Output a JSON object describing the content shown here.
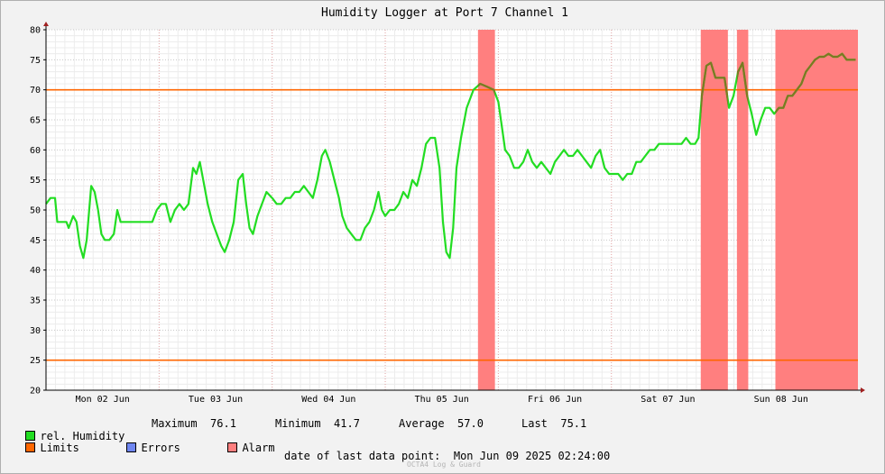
{
  "chart_data": {
    "type": "line",
    "title": "Humidity Logger at Port 7 Channel 1",
    "ylim": [
      20,
      80
    ],
    "yticks": [
      20,
      25,
      30,
      35,
      40,
      45,
      50,
      55,
      60,
      65,
      70,
      75,
      80
    ],
    "xlim": [
      0,
      7.18
    ],
    "xticks": [
      {
        "label": "Mon 02 Jun",
        "x": 0.5
      },
      {
        "label": "Tue 03 Jun",
        "x": 1.5
      },
      {
        "label": "Wed 04 Jun",
        "x": 2.5
      },
      {
        "label": "Thu 05 Jun",
        "x": 3.5
      },
      {
        "label": "Fri 06 Jun",
        "x": 4.5
      },
      {
        "label": "Sat 07 Jun",
        "x": 5.5
      },
      {
        "label": "Sun 08 Jun",
        "x": 6.5
      }
    ],
    "limits": [
      70,
      25
    ],
    "alarm_ranges": [
      [
        3.82,
        3.97
      ],
      [
        5.79,
        6.03
      ],
      [
        6.11,
        6.21
      ],
      [
        6.45,
        7.18
      ]
    ],
    "series": [
      {
        "name": "rel. Humidity",
        "color": "#22dd22",
        "alarm_color": "#7a7a22",
        "points": [
          [
            0.0,
            51
          ],
          [
            0.04,
            52
          ],
          [
            0.08,
            52
          ],
          [
            0.1,
            48
          ],
          [
            0.14,
            48
          ],
          [
            0.18,
            48
          ],
          [
            0.2,
            47
          ],
          [
            0.24,
            49
          ],
          [
            0.27,
            48
          ],
          [
            0.3,
            44
          ],
          [
            0.33,
            42
          ],
          [
            0.36,
            45
          ],
          [
            0.4,
            54
          ],
          [
            0.43,
            53
          ],
          [
            0.46,
            50
          ],
          [
            0.49,
            46
          ],
          [
            0.52,
            45
          ],
          [
            0.56,
            45
          ],
          [
            0.6,
            46
          ],
          [
            0.63,
            50
          ],
          [
            0.66,
            48
          ],
          [
            0.7,
            48
          ],
          [
            0.74,
            48
          ],
          [
            0.8,
            48
          ],
          [
            0.86,
            48
          ],
          [
            0.9,
            48
          ],
          [
            0.94,
            48
          ],
          [
            0.98,
            50
          ],
          [
            1.02,
            51
          ],
          [
            1.06,
            51
          ],
          [
            1.1,
            48
          ],
          [
            1.14,
            50
          ],
          [
            1.18,
            51
          ],
          [
            1.22,
            50
          ],
          [
            1.26,
            51
          ],
          [
            1.3,
            57
          ],
          [
            1.33,
            56
          ],
          [
            1.36,
            58
          ],
          [
            1.4,
            54
          ],
          [
            1.43,
            51
          ],
          [
            1.47,
            48
          ],
          [
            1.51,
            46
          ],
          [
            1.55,
            44
          ],
          [
            1.58,
            43
          ],
          [
            1.62,
            45
          ],
          [
            1.66,
            48
          ],
          [
            1.7,
            55
          ],
          [
            1.74,
            56
          ],
          [
            1.77,
            51
          ],
          [
            1.8,
            47
          ],
          [
            1.83,
            46
          ],
          [
            1.87,
            49
          ],
          [
            1.91,
            51
          ],
          [
            1.95,
            53
          ],
          [
            2.0,
            52
          ],
          [
            2.04,
            51
          ],
          [
            2.08,
            51
          ],
          [
            2.12,
            52
          ],
          [
            2.16,
            52
          ],
          [
            2.2,
            53
          ],
          [
            2.24,
            53
          ],
          [
            2.28,
            54
          ],
          [
            2.32,
            53
          ],
          [
            2.36,
            52
          ],
          [
            2.4,
            55
          ],
          [
            2.44,
            59
          ],
          [
            2.47,
            60
          ],
          [
            2.51,
            58
          ],
          [
            2.55,
            55
          ],
          [
            2.59,
            52
          ],
          [
            2.62,
            49
          ],
          [
            2.66,
            47
          ],
          [
            2.7,
            46
          ],
          [
            2.74,
            45
          ],
          [
            2.78,
            45
          ],
          [
            2.82,
            47
          ],
          [
            2.86,
            48
          ],
          [
            2.9,
            50
          ],
          [
            2.94,
            53
          ],
          [
            2.97,
            50
          ],
          [
            3.0,
            49
          ],
          [
            3.04,
            50
          ],
          [
            3.08,
            50
          ],
          [
            3.12,
            51
          ],
          [
            3.16,
            53
          ],
          [
            3.2,
            52
          ],
          [
            3.24,
            55
          ],
          [
            3.28,
            54
          ],
          [
            3.32,
            57
          ],
          [
            3.36,
            61
          ],
          [
            3.4,
            62
          ],
          [
            3.44,
            62
          ],
          [
            3.48,
            57
          ],
          [
            3.51,
            48
          ],
          [
            3.54,
            43
          ],
          [
            3.57,
            42
          ],
          [
            3.6,
            47
          ],
          [
            3.63,
            57
          ],
          [
            3.67,
            62
          ],
          [
            3.72,
            67
          ],
          [
            3.78,
            70
          ],
          [
            3.84,
            71
          ],
          [
            3.9,
            70.5
          ],
          [
            3.96,
            70
          ],
          [
            4.0,
            68
          ],
          [
            4.03,
            64
          ],
          [
            4.06,
            60
          ],
          [
            4.1,
            59
          ],
          [
            4.14,
            57
          ],
          [
            4.18,
            57
          ],
          [
            4.22,
            58
          ],
          [
            4.26,
            60
          ],
          [
            4.3,
            58
          ],
          [
            4.34,
            57
          ],
          [
            4.38,
            58
          ],
          [
            4.42,
            57
          ],
          [
            4.46,
            56
          ],
          [
            4.5,
            58
          ],
          [
            4.54,
            59
          ],
          [
            4.58,
            60
          ],
          [
            4.62,
            59
          ],
          [
            4.66,
            59
          ],
          [
            4.7,
            60
          ],
          [
            4.74,
            59
          ],
          [
            4.78,
            58
          ],
          [
            4.82,
            57
          ],
          [
            4.86,
            59
          ],
          [
            4.9,
            60
          ],
          [
            4.94,
            57
          ],
          [
            4.98,
            56
          ],
          [
            5.02,
            56
          ],
          [
            5.06,
            56
          ],
          [
            5.1,
            55
          ],
          [
            5.14,
            56
          ],
          [
            5.18,
            56
          ],
          [
            5.22,
            58
          ],
          [
            5.26,
            58
          ],
          [
            5.3,
            59
          ],
          [
            5.34,
            60
          ],
          [
            5.38,
            60
          ],
          [
            5.42,
            61
          ],
          [
            5.46,
            61
          ],
          [
            5.5,
            61
          ],
          [
            5.54,
            61
          ],
          [
            5.58,
            61
          ],
          [
            5.62,
            61
          ],
          [
            5.66,
            62
          ],
          [
            5.7,
            61
          ],
          [
            5.74,
            61
          ],
          [
            5.77,
            62
          ],
          [
            5.8,
            69
          ],
          [
            5.84,
            74
          ],
          [
            5.88,
            74.5
          ],
          [
            5.92,
            72
          ],
          [
            5.96,
            72
          ],
          [
            6.0,
            72
          ],
          [
            6.04,
            67
          ],
          [
            6.08,
            69
          ],
          [
            6.12,
            73
          ],
          [
            6.16,
            74.5
          ],
          [
            6.2,
            69
          ],
          [
            6.24,
            66
          ],
          [
            6.28,
            62.5
          ],
          [
            6.32,
            65
          ],
          [
            6.36,
            67
          ],
          [
            6.4,
            67
          ],
          [
            6.44,
            66
          ],
          [
            6.48,
            67
          ],
          [
            6.52,
            67
          ],
          [
            6.56,
            69
          ],
          [
            6.6,
            69
          ],
          [
            6.64,
            70
          ],
          [
            6.68,
            71
          ],
          [
            6.72,
            73
          ],
          [
            6.76,
            74
          ],
          [
            6.8,
            75
          ],
          [
            6.84,
            75.5
          ],
          [
            6.88,
            75.5
          ],
          [
            6.92,
            76
          ],
          [
            6.96,
            75.5
          ],
          [
            7.0,
            75.5
          ],
          [
            7.04,
            76
          ],
          [
            7.08,
            75
          ],
          [
            7.12,
            75
          ],
          [
            7.16,
            75
          ]
        ]
      }
    ]
  },
  "legend": {
    "humidity_label": "rel. Humidity",
    "maximum": "Maximum  76.1",
    "minimum": "Minimum  41.7",
    "average": "Average  57.0",
    "last": "Last  75.1",
    "limits_label": "Limits",
    "errors_label": "Errors",
    "alarm_label": "Alarm"
  },
  "footer": {
    "last_point_label": "date of last data point:",
    "last_point_value": "Mon Jun 09 2025 02:24:00",
    "credit": "OCTA4 Log & Guard"
  },
  "colors": {
    "humidity": "#22dd22",
    "limits": "#ff6600",
    "errors": "#6f86f0",
    "alarm": "#ff7f7f"
  }
}
